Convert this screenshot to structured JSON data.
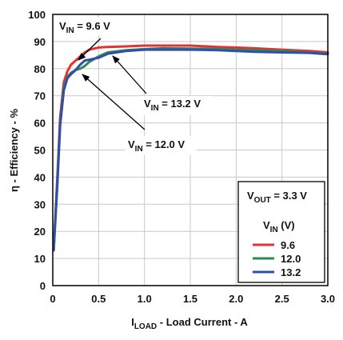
{
  "chart_data": {
    "type": "line",
    "title": "",
    "xlabel": {
      "main": "I",
      "sub": "LOAD",
      "rest": " - Load Current - A"
    },
    "ylabel": "η - Efficiency - %",
    "xlim": [
      0,
      3.0
    ],
    "ylim": [
      0,
      100
    ],
    "x_ticks": [
      0,
      0.5,
      1.0,
      1.5,
      2.0,
      2.5,
      3.0
    ],
    "x_tick_labels": [
      "0",
      "0.5",
      "1.0",
      "1.5",
      "2.0",
      "2.5",
      "3.0"
    ],
    "y_ticks": [
      0,
      10,
      20,
      30,
      40,
      50,
      60,
      70,
      80,
      90,
      100
    ],
    "y_tick_labels": [
      "0",
      "10",
      "20",
      "30",
      "40",
      "50",
      "60",
      "70",
      "80",
      "90",
      "100"
    ],
    "grid": true,
    "legend_position": "bottom-right",
    "legend": {
      "header": {
        "main": "V",
        "sub": "OUT",
        "rest": " = 3.3 V"
      },
      "subheader": {
        "main": "V",
        "sub": "IN",
        "rest": " (V)"
      }
    },
    "series": [
      {
        "name": "9.6",
        "color": "#e8312f",
        "x": [
          0.01,
          0.05,
          0.08,
          0.12,
          0.16,
          0.2,
          0.25,
          0.3,
          0.35,
          0.4,
          0.5,
          0.6,
          0.8,
          1.0,
          1.2,
          1.5,
          1.8,
          2.0,
          2.2,
          2.5,
          2.8,
          3.0
        ],
        "y": [
          13,
          40,
          62,
          75,
          79,
          81.5,
          83,
          84.5,
          86,
          87,
          87.8,
          88,
          88.2,
          88.5,
          88.5,
          88.5,
          88,
          87.8,
          87.5,
          87,
          86.5,
          86
        ]
      },
      {
        "name": "12.0",
        "color": "#2e8b57",
        "x": [
          0.01,
          0.05,
          0.08,
          0.12,
          0.16,
          0.2,
          0.25,
          0.3,
          0.35,
          0.4,
          0.5,
          0.6,
          0.8,
          1.0,
          1.2,
          1.5,
          1.8,
          2.0,
          2.2,
          2.5,
          2.8,
          3.0
        ],
        "y": [
          13,
          38,
          60,
          73,
          77,
          78.5,
          79.5,
          80,
          81,
          82.5,
          84.5,
          86,
          86.8,
          87.2,
          87.5,
          87.4,
          87.2,
          87,
          86.8,
          86.5,
          86,
          85.5
        ]
      },
      {
        "name": "13.2",
        "color": "#2f4fa8",
        "x": [
          0.01,
          0.05,
          0.08,
          0.12,
          0.16,
          0.2,
          0.25,
          0.3,
          0.35,
          0.4,
          0.5,
          0.6,
          0.8,
          1.0,
          1.2,
          1.5,
          1.8,
          2.0,
          2.2,
          2.5,
          2.8,
          3.0
        ],
        "y": [
          13,
          37,
          59,
          72,
          76.5,
          78,
          79.5,
          81.5,
          83,
          83.3,
          84,
          85.5,
          86.5,
          87,
          87,
          87,
          86.8,
          86.5,
          86.2,
          86,
          85.8,
          85.3
        ]
      }
    ],
    "annotations": [
      {
        "main": "V",
        "sub": "IN",
        "rest": " = 9.6 V"
      },
      {
        "main": "V",
        "sub": "IN",
        "rest": " = 13.2 V"
      },
      {
        "main": "V",
        "sub": "IN",
        "rest": " = 12.0 V"
      }
    ]
  }
}
